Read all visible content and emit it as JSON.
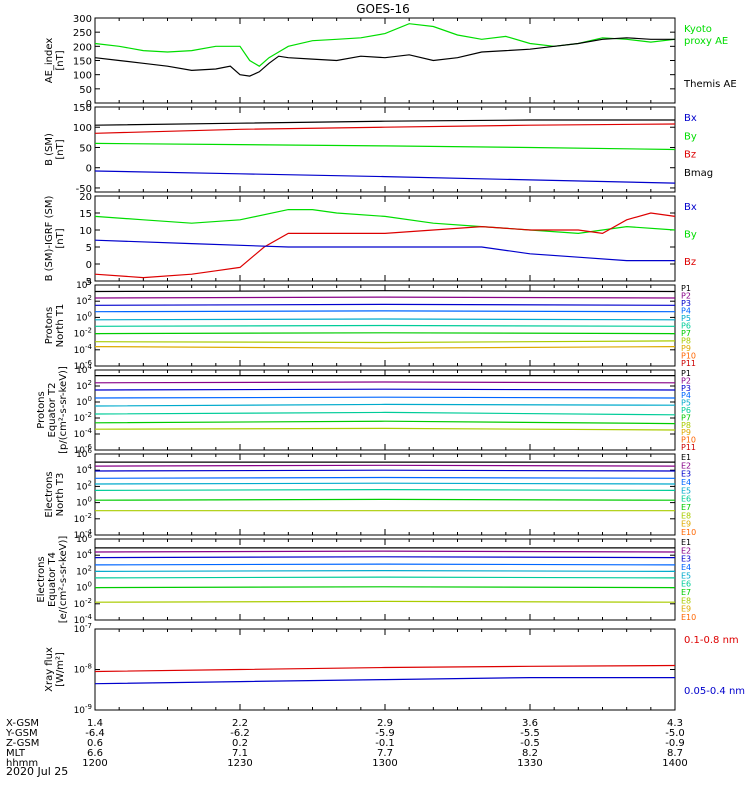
{
  "title": "GOES-16",
  "date_label": "2020 Jul 25",
  "time_axis": {
    "tick_times": [
      "1200",
      "1230",
      "1300",
      "1330",
      "1400"
    ],
    "rows": [
      {
        "label": "X-GSM",
        "values": [
          "1.4",
          "2.2",
          "2.9",
          "3.6",
          "4.3"
        ]
      },
      {
        "label": "Y-GSM",
        "values": [
          "-6.4",
          "-6.2",
          "-5.9",
          "-5.5",
          "-5.0"
        ]
      },
      {
        "label": "Z-GSM",
        "values": [
          "0.6",
          "0.2",
          "-0.1",
          "-0.5",
          "-0.9"
        ]
      },
      {
        "label": "MLT",
        "values": [
          "6.6",
          "7.1",
          "7.7",
          "8.2",
          "8.7"
        ]
      },
      {
        "label": "hhmm",
        "values": [
          "1200",
          "1230",
          "1300",
          "1330",
          "1400"
        ]
      }
    ]
  },
  "colors": {
    "black": "#000000",
    "green": "#00dd00",
    "red": "#dd0000",
    "blue": "#0000cc",
    "P": [
      "#000000",
      "#880088",
      "#0000cc",
      "#0066ff",
      "#00aacc",
      "#00cc99",
      "#00cc00",
      "#aacc00",
      "#ddaa00",
      "#ff6600",
      "#cc0000"
    ]
  },
  "chart_data": [
    {
      "type": "line",
      "ylabel": "AE_index\n[nT]",
      "ylim": [
        0,
        300
      ],
      "y_ticks": [
        "0",
        "50",
        "100",
        "150",
        "200",
        "250",
        "300"
      ],
      "legend": [
        {
          "name": "Kyoto\nproxy AE",
          "color": "#00dd00"
        },
        {
          "name": "Themis AE",
          "color": "#000000"
        }
      ],
      "series": [
        {
          "name": "Kyoto proxy AE",
          "color": "#00dd00",
          "x": [
            0,
            5,
            10,
            15,
            20,
            25,
            30,
            32,
            34,
            36,
            38,
            40,
            45,
            50,
            55,
            60,
            65,
            70,
            75,
            80,
            85,
            90,
            95,
            100,
            105,
            110,
            115,
            120
          ],
          "y": [
            210,
            200,
            185,
            180,
            185,
            200,
            200,
            150,
            130,
            160,
            180,
            200,
            220,
            225,
            230,
            245,
            280,
            270,
            240,
            225,
            235,
            210,
            200,
            210,
            230,
            225,
            215,
            225
          ]
        },
        {
          "name": "Themis AE",
          "color": "#000000",
          "x": [
            0,
            5,
            10,
            15,
            20,
            25,
            28,
            30,
            32,
            34,
            36,
            38,
            40,
            45,
            50,
            55,
            60,
            65,
            70,
            75,
            80,
            85,
            90,
            95,
            100,
            105,
            110,
            115,
            120
          ],
          "y": [
            160,
            150,
            140,
            130,
            115,
            120,
            130,
            100,
            95,
            110,
            140,
            165,
            160,
            155,
            150,
            165,
            160,
            170,
            150,
            160,
            180,
            185,
            190,
            200,
            210,
            225,
            230,
            225,
            225
          ]
        }
      ]
    },
    {
      "type": "line",
      "ylabel": "B (SM)\n[nT]",
      "ylim": [
        -60,
        150
      ],
      "y_ticks": [
        "-50",
        "0",
        "50",
        "100",
        "150"
      ],
      "legend": [
        {
          "name": "Bx",
          "color": "#0000cc"
        },
        {
          "name": "By",
          "color": "#00dd00"
        },
        {
          "name": "Bz",
          "color": "#dd0000"
        },
        {
          "name": "Bmag",
          "color": "#000000"
        }
      ],
      "series": [
        {
          "name": "Bmag",
          "color": "#000000",
          "x": [
            0,
            30,
            60,
            90,
            120
          ],
          "y": [
            105,
            110,
            115,
            118,
            118
          ]
        },
        {
          "name": "Bz",
          "color": "#dd0000",
          "x": [
            0,
            30,
            60,
            90,
            120
          ],
          "y": [
            85,
            95,
            100,
            105,
            108
          ]
        },
        {
          "name": "By",
          "color": "#00dd00",
          "x": [
            0,
            30,
            60,
            90,
            120
          ],
          "y": [
            60,
            57,
            54,
            50,
            45
          ]
        },
        {
          "name": "Bx",
          "color": "#0000cc",
          "x": [
            0,
            30,
            60,
            90,
            120
          ],
          "y": [
            -8,
            -15,
            -22,
            -30,
            -38
          ]
        }
      ]
    },
    {
      "type": "line",
      "ylabel": "B (SM)-IGRF (SM)\n[nT]",
      "ylim": [
        -5,
        20
      ],
      "y_ticks": [
        "-5",
        "0",
        "5",
        "10",
        "15",
        "20"
      ],
      "legend": [
        {
          "name": "Bx",
          "color": "#0000cc"
        },
        {
          "name": "By",
          "color": "#00dd00"
        },
        {
          "name": "Bz",
          "color": "#dd0000"
        }
      ],
      "series": [
        {
          "name": "By",
          "color": "#00dd00",
          "x": [
            0,
            10,
            20,
            30,
            40,
            45,
            50,
            60,
            70,
            80,
            90,
            100,
            110,
            120
          ],
          "y": [
            14,
            13,
            12,
            13,
            16,
            16,
            15,
            14,
            12,
            11,
            10,
            9,
            11,
            10
          ]
        },
        {
          "name": "Bz",
          "color": "#dd0000",
          "x": [
            0,
            10,
            20,
            25,
            30,
            35,
            40,
            50,
            60,
            70,
            80,
            90,
            100,
            105,
            110,
            115,
            120
          ],
          "y": [
            -3,
            -4,
            -3,
            -2,
            -1,
            5,
            9,
            9,
            9,
            10,
            11,
            10,
            10,
            9,
            13,
            15,
            14
          ]
        },
        {
          "name": "Bx",
          "color": "#0000cc",
          "x": [
            0,
            20,
            40,
            60,
            80,
            90,
            100,
            110,
            120
          ],
          "y": [
            7,
            6,
            5,
            5,
            5,
            3,
            2,
            1,
            1
          ]
        }
      ]
    },
    {
      "type": "line",
      "ylabel": "Protons\nNorth T1",
      "y_log": true,
      "ylim_exp": [
        -6,
        4
      ],
      "y_ticks": [
        "10^-6",
        "10^-4",
        "10^-2",
        "10^0",
        "10^2",
        "10^4"
      ],
      "legend": [
        "P1",
        "P2",
        "P3",
        "P4",
        "P5",
        "P6",
        "P7",
        "P8",
        "P9",
        "P10",
        "P11"
      ],
      "series": [
        {
          "name": "P1",
          "log_y": [
            3.2,
            3.3,
            3.2
          ]
        },
        {
          "name": "P2",
          "log_y": [
            2.4,
            2.5,
            2.4
          ]
        },
        {
          "name": "P3",
          "log_y": [
            1.5,
            1.6,
            1.5
          ]
        },
        {
          "name": "P4",
          "log_y": [
            0.7,
            0.8,
            0.7
          ]
        },
        {
          "name": "P5",
          "log_y": [
            -0.3,
            -0.2,
            -0.3
          ]
        },
        {
          "name": "P6",
          "log_y": [
            -1.1,
            -1.0,
            -1.1
          ]
        },
        {
          "name": "P7",
          "log_y": [
            -2.0,
            -1.9,
            -2.0
          ]
        },
        {
          "name": "P8",
          "log_y": [
            -3.0,
            -3.1,
            -2.9
          ]
        },
        {
          "name": "P9",
          "log_y": [
            -3.6,
            -3.8,
            -3.6
          ]
        }
      ]
    },
    {
      "type": "line",
      "ylabel": "Protons\nEquator T2\n[p/(cm²-s-sr-keV)]",
      "y_log": true,
      "ylim_exp": [
        -6,
        4
      ],
      "y_ticks": [
        "10^-6",
        "10^-4",
        "10^-2",
        "10^0",
        "10^2",
        "10^4"
      ],
      "legend": [
        "P1",
        "P2",
        "P3",
        "P4",
        "P5",
        "P6",
        "P7",
        "P8",
        "P9",
        "P10",
        "P11"
      ],
      "series": [
        {
          "name": "P1",
          "log_y": [
            3.3,
            3.3,
            3.3
          ]
        },
        {
          "name": "P2",
          "log_y": [
            2.4,
            2.5,
            2.4
          ]
        },
        {
          "name": "P3",
          "log_y": [
            1.5,
            1.6,
            1.5
          ]
        },
        {
          "name": "P4",
          "log_y": [
            0.5,
            0.6,
            0.5
          ]
        },
        {
          "name": "P5",
          "log_y": [
            -0.5,
            -0.3,
            -0.4
          ]
        },
        {
          "name": "P6",
          "log_y": [
            -1.5,
            -1.3,
            -1.6
          ]
        },
        {
          "name": "P7",
          "log_y": [
            -2.6,
            -2.4,
            -2.7
          ]
        },
        {
          "name": "P8",
          "log_y": [
            -3.4,
            -3.3,
            -3.5
          ]
        }
      ]
    },
    {
      "type": "line",
      "ylabel": "Electrons\nNorth T3",
      "y_log": true,
      "ylim_exp": [
        -4,
        6
      ],
      "y_ticks": [
        "10^-4",
        "10^-2",
        "10^0",
        "10^2",
        "10^4",
        "10^6"
      ],
      "legend": [
        "E1",
        "E2",
        "E3",
        "E4",
        "E5",
        "E6",
        "E7",
        "E8",
        "E9",
        "E10"
      ],
      "series": [
        {
          "name": "E1",
          "log_y": [
            5.0,
            5.0,
            5.0
          ]
        },
        {
          "name": "E2",
          "log_y": [
            4.5,
            4.6,
            4.5
          ]
        },
        {
          "name": "E3",
          "log_y": [
            3.9,
            4.0,
            3.9
          ]
        },
        {
          "name": "E4",
          "log_y": [
            3.0,
            3.1,
            3.0
          ]
        },
        {
          "name": "E5",
          "log_y": [
            2.3,
            2.4,
            2.3
          ]
        },
        {
          "name": "E6",
          "log_y": [
            1.5,
            1.6,
            1.5
          ]
        },
        {
          "name": "E7",
          "log_y": [
            0.3,
            0.4,
            0.3
          ]
        },
        {
          "name": "E8",
          "log_y": [
            -1.0,
            -1.0,
            -1.0
          ]
        }
      ]
    },
    {
      "type": "line",
      "ylabel": "Electrons\nEquator T4\n[e/(cm²-s-sr-keV)]",
      "y_log": true,
      "ylim_exp": [
        -4,
        6
      ],
      "y_ticks": [
        "10^-4",
        "10^-2",
        "10^0",
        "10^2",
        "10^4",
        "10^6"
      ],
      "legend": [
        "E1",
        "E2",
        "E3",
        "E4",
        "E5",
        "E6",
        "E7",
        "E8",
        "E9",
        "E10"
      ],
      "series": [
        {
          "name": "E1",
          "log_y": [
            4.9,
            4.9,
            4.9
          ]
        },
        {
          "name": "E2",
          "log_y": [
            4.4,
            4.5,
            4.4
          ]
        },
        {
          "name": "E3",
          "log_y": [
            3.7,
            3.8,
            3.7
          ]
        },
        {
          "name": "E4",
          "log_y": [
            2.8,
            2.9,
            2.8
          ]
        },
        {
          "name": "E5",
          "log_y": [
            2.0,
            2.1,
            2.0
          ]
        },
        {
          "name": "E6",
          "log_y": [
            1.2,
            1.3,
            1.2
          ]
        },
        {
          "name": "E7",
          "log_y": [
            0.0,
            0.1,
            0.0
          ]
        },
        {
          "name": "E8",
          "log_y": [
            -1.8,
            -1.7,
            -1.8
          ]
        }
      ]
    },
    {
      "type": "line",
      "ylabel": "Xray flux\n[W/m²]",
      "y_log": true,
      "ylim_exp": [
        -9,
        -7
      ],
      "y_ticks": [
        "10^-9",
        "10^-8",
        "10^-7"
      ],
      "legend": [
        {
          "name": "0.1-0.8 nm",
          "color": "#dd0000"
        },
        {
          "name": "0.05-0.4 nm",
          "color": "#0000cc"
        }
      ],
      "series": [
        {
          "name": "0.1-0.8 nm",
          "color": "#dd0000",
          "x": [
            0,
            30,
            60,
            90,
            120
          ],
          "log_y": [
            -8.05,
            -8.0,
            -7.95,
            -7.92,
            -7.9
          ]
        },
        {
          "name": "0.05-0.4 nm",
          "color": "#0000cc",
          "x": [
            0,
            30,
            60,
            90,
            120
          ],
          "log_y": [
            -8.35,
            -8.3,
            -8.25,
            -8.2,
            -8.2
          ]
        }
      ]
    }
  ]
}
